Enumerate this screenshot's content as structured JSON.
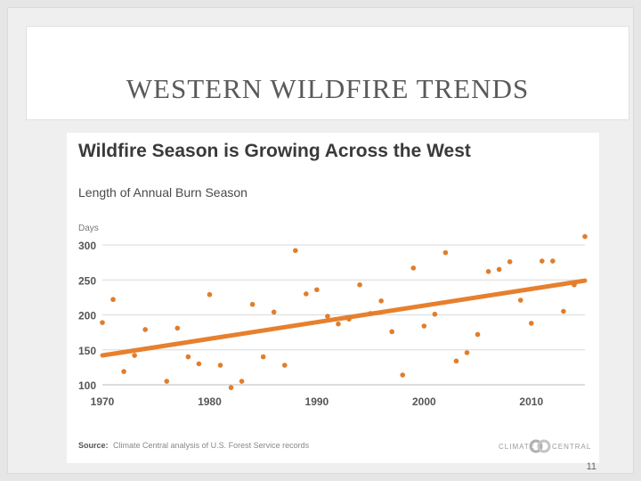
{
  "slide": {
    "title": "WESTERN WILDFIRE TRENDS",
    "page_number": "11"
  },
  "chart_data": {
    "type": "scatter",
    "title": "Wildfire Season is Growing Across the West",
    "subtitle": "Length of Annual Burn Season",
    "ylabel": "Days",
    "xlabel": "",
    "xlim": [
      1970,
      2015
    ],
    "ylim": [
      100,
      300
    ],
    "yticks": [
      100,
      150,
      200,
      250,
      300
    ],
    "xticks": [
      1970,
      1980,
      1990,
      2000,
      2010
    ],
    "grid": "horizontal",
    "legend": "none",
    "colors": {
      "points": "#e07e2c",
      "trend": "#e6802e",
      "title": "#3a3a3a",
      "grid": "#d9d9d9"
    },
    "series": [
      {
        "points": [
          [
            1970,
            189
          ],
          [
            1971,
            222
          ],
          [
            1972,
            119
          ],
          [
            1973,
            142
          ],
          [
            1974,
            179
          ],
          [
            1976,
            105
          ],
          [
            1977,
            181
          ],
          [
            1978,
            140
          ],
          [
            1979,
            130
          ],
          [
            1980,
            229
          ],
          [
            1981,
            128
          ],
          [
            1982,
            96
          ],
          [
            1983,
            105
          ],
          [
            1984,
            215
          ],
          [
            1985,
            140
          ],
          [
            1986,
            204
          ],
          [
            1987,
            128
          ],
          [
            1988,
            292
          ],
          [
            1989,
            230
          ],
          [
            1990,
            236
          ],
          [
            1991,
            198
          ],
          [
            1992,
            187
          ],
          [
            1993,
            194
          ],
          [
            1994,
            243
          ],
          [
            1995,
            202
          ],
          [
            1996,
            220
          ],
          [
            1997,
            176
          ],
          [
            1998,
            114
          ],
          [
            1999,
            267
          ],
          [
            2000,
            184
          ],
          [
            2001,
            201
          ],
          [
            2002,
            289
          ],
          [
            2003,
            134
          ],
          [
            2004,
            146
          ],
          [
            2005,
            172
          ],
          [
            2006,
            262
          ],
          [
            2007,
            265
          ],
          [
            2008,
            276
          ],
          [
            2009,
            221
          ],
          [
            2010,
            188
          ],
          [
            2011,
            277
          ],
          [
            2012,
            277
          ],
          [
            2013,
            205
          ],
          [
            2014,
            243
          ],
          [
            2015,
            312
          ]
        ]
      }
    ],
    "trend_line": {
      "x": [
        1970,
        2015
      ],
      "y": [
        142,
        249
      ]
    },
    "source_label": "Source:",
    "source_text": "Climate Central analysis of U.S. Forest Service records",
    "logo_text_left": "CLIMATE",
    "logo_text_right": "CENTRAL"
  }
}
